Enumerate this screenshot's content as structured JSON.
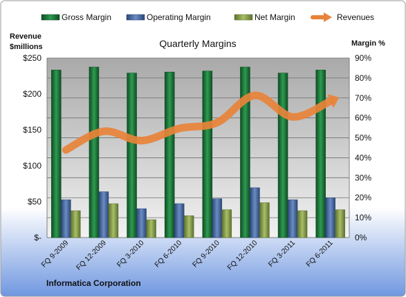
{
  "chart_data": {
    "type": "bar",
    "title": "Quarterly Margins",
    "left_axis_label_line1": "Revenue",
    "left_axis_label_line2": "$millions",
    "right_axis_label": "Margin %",
    "footer": "Informatica Corporation",
    "categories": [
      "FQ 9-2009",
      "FQ 12-2009",
      "FQ 3-2010",
      "FQ 6-2010",
      "FQ 9-2010",
      "FQ 12-2010",
      "FQ 3-2011",
      "FQ 6-2011"
    ],
    "left_ticks": [
      "$-",
      "$50",
      "$100",
      "$150",
      "$200",
      "$250"
    ],
    "right_ticks": [
      "0%",
      "10%",
      "20%",
      "30%",
      "40%",
      "50%",
      "60%",
      "70%",
      "80%",
      "90%"
    ],
    "ylim_left": [
      0,
      250
    ],
    "ylim_right": [
      0,
      90
    ],
    "grid": true,
    "legend_position": "top",
    "series": [
      {
        "name": "Gross Margin",
        "type": "bar",
        "axis": "right",
        "color": "#1f7a3a",
        "values": [
          84,
          85.5,
          82.5,
          83,
          83.5,
          85.5,
          82.5,
          84
        ]
      },
      {
        "name": "Operating Margin",
        "type": "bar",
        "axis": "right",
        "color": "#4a6fa8",
        "values": [
          19,
          23,
          14.5,
          17,
          19.5,
          25,
          19,
          20
        ]
      },
      {
        "name": "Net Margin",
        "type": "bar",
        "axis": "right",
        "color": "#8aa04a",
        "values": [
          13.5,
          17,
          9,
          11,
          14,
          17.5,
          13.5,
          14
        ]
      },
      {
        "name": "Revenues",
        "type": "line",
        "axis": "left",
        "color": "#e8833a",
        "values": [
          122,
          148,
          135,
          152,
          160,
          198,
          168,
          190
        ]
      }
    ]
  }
}
